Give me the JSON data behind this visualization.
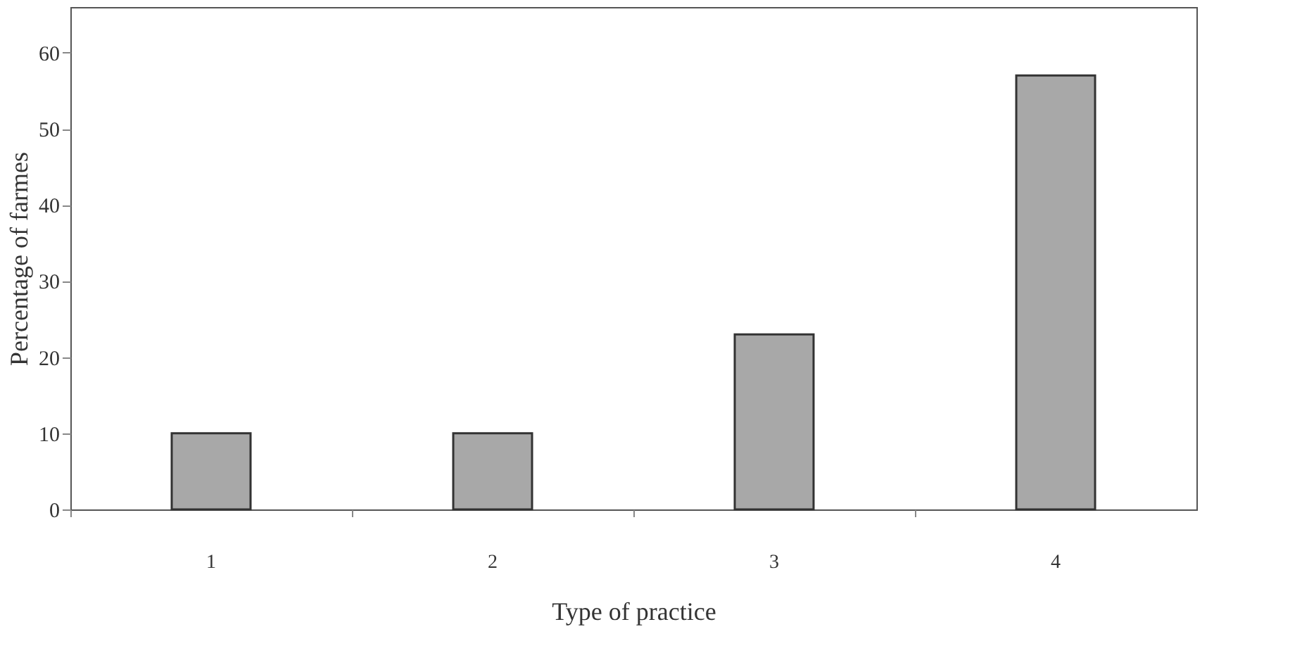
{
  "chart_data": {
    "type": "bar",
    "xlabel": "Type of practice",
    "ylabel": "Percentage of farmes",
    "categories": [
      "1",
      "2",
      "3",
      "4"
    ],
    "values": [
      10,
      10,
      23,
      57
    ],
    "color": "#a8a8a8",
    "ylim": [
      0,
      66
    ],
    "yticks": [
      0,
      10,
      20,
      30,
      40,
      50,
      60
    ],
    "grid": false
  }
}
